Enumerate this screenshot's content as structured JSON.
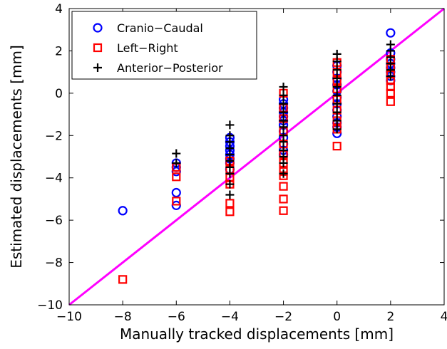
{
  "chart_data": {
    "type": "scatter",
    "title": "",
    "xlabel": "Manually tracked displacements [mm]",
    "ylabel": "Estimated displacements [mm]",
    "xlim": [
      -10,
      4
    ],
    "ylim": [
      -10,
      4
    ],
    "xticks": [
      -10,
      -8,
      -6,
      -4,
      -2,
      0,
      2,
      4
    ],
    "yticks": [
      -10,
      -8,
      -6,
      -4,
      -2,
      0,
      2,
      4
    ],
    "xtick_labels": [
      "−10",
      "−8",
      "−6",
      "−4",
      "−2",
      "0",
      "2",
      "4"
    ],
    "ytick_labels": [
      "−10",
      "−8",
      "−6",
      "−4",
      "−2",
      "0",
      "2",
      "4"
    ],
    "grid": false,
    "legend_position": "top-left",
    "identity_line": {
      "x": [
        -10,
        4
      ],
      "y": [
        -10,
        4
      ],
      "color": "#ff00ff"
    },
    "series": [
      {
        "name": "Cranio−Caudal",
        "marker": "circle",
        "color": "#0000ff",
        "points": [
          [
            -8,
            -5.55
          ],
          [
            -6,
            -3.3
          ],
          [
            -6,
            -3.5
          ],
          [
            -6,
            -3.7
          ],
          [
            -6,
            -4.7
          ],
          [
            -6,
            -5.3
          ],
          [
            -4,
            -2.1
          ],
          [
            -4,
            -2.3
          ],
          [
            -4,
            -2.5
          ],
          [
            -4,
            -2.7
          ],
          [
            -4,
            -2.9
          ],
          [
            -4,
            -3.1
          ],
          [
            -4,
            -3.3
          ],
          [
            -4,
            -3.6
          ],
          [
            -2,
            -0.3
          ],
          [
            -2,
            -0.5
          ],
          [
            -2,
            -0.7
          ],
          [
            -2,
            -0.9
          ],
          [
            -2,
            -1.1
          ],
          [
            -2,
            -1.3
          ],
          [
            -2,
            -1.5
          ],
          [
            -2,
            -1.8
          ],
          [
            -2,
            -2.1
          ],
          [
            -2,
            -2.4
          ],
          [
            -2,
            -2.7
          ],
          [
            -2,
            -2.9
          ],
          [
            0,
            1.3
          ],
          [
            0,
            1.0
          ],
          [
            0,
            0.7
          ],
          [
            0,
            0.4
          ],
          [
            0,
            0.1
          ],
          [
            0,
            -0.2
          ],
          [
            0,
            -0.5
          ],
          [
            0,
            -0.8
          ],
          [
            0,
            -1.1
          ],
          [
            0,
            -1.4
          ],
          [
            0,
            -1.6
          ],
          [
            0,
            -1.9
          ],
          [
            2,
            2.85
          ],
          [
            2,
            1.9
          ],
          [
            2,
            1.6
          ],
          [
            2,
            1.4
          ],
          [
            2,
            1.2
          ],
          [
            2,
            1.0
          ],
          [
            2,
            0.8
          ],
          [
            2,
            0.6
          ]
        ]
      },
      {
        "name": "Left−Right",
        "marker": "square",
        "color": "#ff0000",
        "points": [
          [
            -8,
            -8.8
          ],
          [
            -6,
            -3.5
          ],
          [
            -6,
            -3.95
          ],
          [
            -6,
            -5.1
          ],
          [
            -4,
            -3.2
          ],
          [
            -4,
            -3.6
          ],
          [
            -4,
            -4.0
          ],
          [
            -4,
            -4.3
          ],
          [
            -4,
            -5.2
          ],
          [
            -4,
            -5.6
          ],
          [
            -2,
            0.0
          ],
          [
            -2,
            -0.7
          ],
          [
            -2,
            -1.2
          ],
          [
            -2,
            -1.8
          ],
          [
            -2,
            -2.4
          ],
          [
            -2,
            -2.9
          ],
          [
            -2,
            -3.3
          ],
          [
            -2,
            -3.7
          ],
          [
            -2,
            -3.9
          ],
          [
            -2,
            -4.4
          ],
          [
            -2,
            -5.0
          ],
          [
            -2,
            -5.55
          ],
          [
            0,
            1.45
          ],
          [
            0,
            1.0
          ],
          [
            0,
            0.6
          ],
          [
            0,
            0.2
          ],
          [
            0,
            -0.3
          ],
          [
            0,
            -0.8
          ],
          [
            0,
            -1.3
          ],
          [
            0,
            -1.7
          ],
          [
            0,
            -2.5
          ],
          [
            2,
            1.6
          ],
          [
            2,
            1.2
          ],
          [
            2,
            0.9
          ],
          [
            2,
            0.6
          ],
          [
            2,
            0.3
          ],
          [
            2,
            0.0
          ],
          [
            2,
            -0.4
          ]
        ]
      },
      {
        "name": "Anterior−Posterior",
        "marker": "plus",
        "color": "#000000",
        "points": [
          [
            -6,
            -2.85
          ],
          [
            -6,
            -3.3
          ],
          [
            -4,
            -1.5
          ],
          [
            -4,
            -2.0
          ],
          [
            -4,
            -2.3
          ],
          [
            -4,
            -2.6
          ],
          [
            -4,
            -2.9
          ],
          [
            -4,
            -3.2
          ],
          [
            -4,
            -3.5
          ],
          [
            -4,
            -3.8
          ],
          [
            -4,
            -4.3
          ],
          [
            -4,
            -4.8
          ],
          [
            -2,
            0.3
          ],
          [
            -2,
            -0.1
          ],
          [
            -2,
            -0.5
          ],
          [
            -2,
            -0.9
          ],
          [
            -2,
            -1.3
          ],
          [
            -2,
            -1.6
          ],
          [
            -2,
            -2.0
          ],
          [
            -2,
            -2.3
          ],
          [
            -2,
            -2.7
          ],
          [
            -2,
            -3.0
          ],
          [
            -2,
            -3.3
          ],
          [
            -2,
            -3.8
          ],
          [
            0,
            1.85
          ],
          [
            0,
            1.5
          ],
          [
            0,
            1.1
          ],
          [
            0,
            0.7
          ],
          [
            0,
            0.3
          ],
          [
            0,
            -0.1
          ],
          [
            0,
            -0.5
          ],
          [
            0,
            -0.9
          ],
          [
            0,
            -1.3
          ],
          [
            0,
            -1.7
          ],
          [
            2,
            2.3
          ],
          [
            2,
            2.0
          ],
          [
            2,
            1.7
          ],
          [
            2,
            1.4
          ],
          [
            2,
            1.1
          ],
          [
            2,
            0.8
          ]
        ]
      }
    ]
  }
}
